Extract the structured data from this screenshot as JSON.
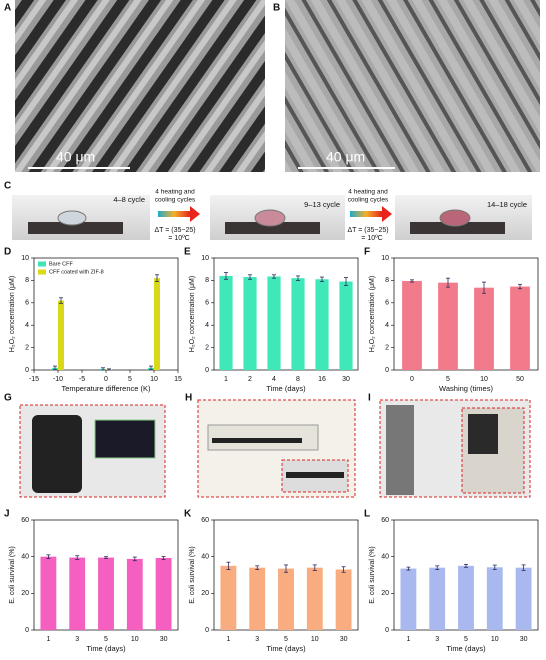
{
  "images": [
    {
      "label": "A",
      "scale_bar": "40 μm"
    },
    {
      "label": "B",
      "scale_bar": "40 μm"
    }
  ],
  "process": {
    "label": "C",
    "stages": [
      "4–8 cycle",
      "9–13 cycle",
      "14–18 cycle"
    ],
    "steps": [
      {
        "lines": [
          "4 heating and",
          "cooling cycles"
        ],
        "delta": [
          "ΔT = (35−25)",
          "= 10ºC"
        ]
      },
      {
        "lines": [
          "4 heating and",
          "cooling cycles"
        ],
        "delta": [
          "ΔT = (35−25)",
          "= 10ºC"
        ]
      }
    ]
  },
  "photos": [
    {
      "label": "G"
    },
    {
      "label": "H"
    },
    {
      "label": "I"
    }
  ],
  "chart_data": [
    {
      "type": "bar",
      "panel": "D",
      "x_label": "Temperature difference (K)",
      "y_label": "H₂O₂ concentration (μM)",
      "x": [
        -10,
        0,
        10
      ],
      "xlim": [
        -15,
        15
      ],
      "xticks": [
        -15,
        -10,
        -5,
        0,
        5,
        10,
        15
      ],
      "ylim": [
        0,
        10
      ],
      "yticks": [
        0,
        2,
        4,
        6,
        8,
        10
      ],
      "legend": "upper left",
      "series": [
        {
          "name": "Bare CFF",
          "color": "#3ee3b6",
          "values": [
            0.2,
            0.1,
            0.2
          ],
          "errors": [
            0.15,
            0.1,
            0.15
          ]
        },
        {
          "name": "CFF coated with ZIF-8",
          "color": "#d9d91a",
          "values": [
            6.2,
            0.05,
            8.2
          ],
          "errors": [
            0.25,
            0.05,
            0.3
          ]
        }
      ]
    },
    {
      "type": "bar",
      "panel": "E",
      "x_label": "Time (days)",
      "y_label": "H₂O₂ concentration (μM)",
      "categories": [
        "1",
        "2",
        "4",
        "8",
        "16",
        "30"
      ],
      "ylim": [
        0,
        10
      ],
      "yticks": [
        0,
        2,
        4,
        6,
        8,
        10
      ],
      "series": [
        {
          "color": "#3fe8b8",
          "values": [
            8.4,
            8.3,
            8.35,
            8.2,
            8.1,
            7.9
          ],
          "errors": [
            0.3,
            0.2,
            0.15,
            0.2,
            0.2,
            0.35
          ]
        }
      ]
    },
    {
      "type": "bar",
      "panel": "F",
      "x_label": "Washing (times)",
      "y_label": "H₂O₂ concentration (μM)",
      "categories": [
        "0",
        "5",
        "10",
        "50"
      ],
      "ylim": [
        0,
        10
      ],
      "yticks": [
        0,
        2,
        4,
        6,
        8,
        10
      ],
      "series": [
        {
          "color": "#f27b8b",
          "values": [
            7.95,
            7.8,
            7.35,
            7.45
          ],
          "errors": [
            0.1,
            0.4,
            0.5,
            0.2
          ]
        }
      ]
    },
    {
      "type": "bar",
      "panel": "J",
      "x_label": "Time (days)",
      "y_label": "E. coli survival (%)",
      "categories": [
        "1",
        "3",
        "5",
        "10",
        "30"
      ],
      "ylim": [
        0,
        60
      ],
      "yticks": [
        0,
        20,
        40,
        60
      ],
      "series": [
        {
          "color": "#f45fc0",
          "values": [
            40,
            39.5,
            39.5,
            38.8,
            39.3
          ],
          "errors": [
            1,
            1,
            0.5,
            1,
            0.8
          ]
        }
      ]
    },
    {
      "type": "bar",
      "panel": "K",
      "x_label": "Time (days)",
      "y_label": "E. coli survival (%)",
      "categories": [
        "1",
        "3",
        "5",
        "10",
        "30"
      ],
      "ylim": [
        0,
        60
      ],
      "yticks": [
        0,
        20,
        40,
        60
      ],
      "series": [
        {
          "color": "#f8ac80",
          "values": [
            35,
            34,
            33.5,
            34,
            33
          ],
          "errors": [
            2,
            1,
            2,
            1.5,
            1.5
          ]
        }
      ]
    },
    {
      "type": "bar",
      "panel": "L",
      "x_label": "Time (days)",
      "y_label": "E. coli survival (%)",
      "categories": [
        "1",
        "3",
        "5",
        "10",
        "30"
      ],
      "ylim": [
        0,
        60
      ],
      "yticks": [
        0,
        20,
        40,
        60
      ],
      "series": [
        {
          "color": "#a9b9f0",
          "values": [
            33.5,
            34,
            35,
            34.2,
            34
          ],
          "errors": [
            0.8,
            1,
            0.8,
            1.2,
            1.5
          ]
        }
      ]
    }
  ]
}
